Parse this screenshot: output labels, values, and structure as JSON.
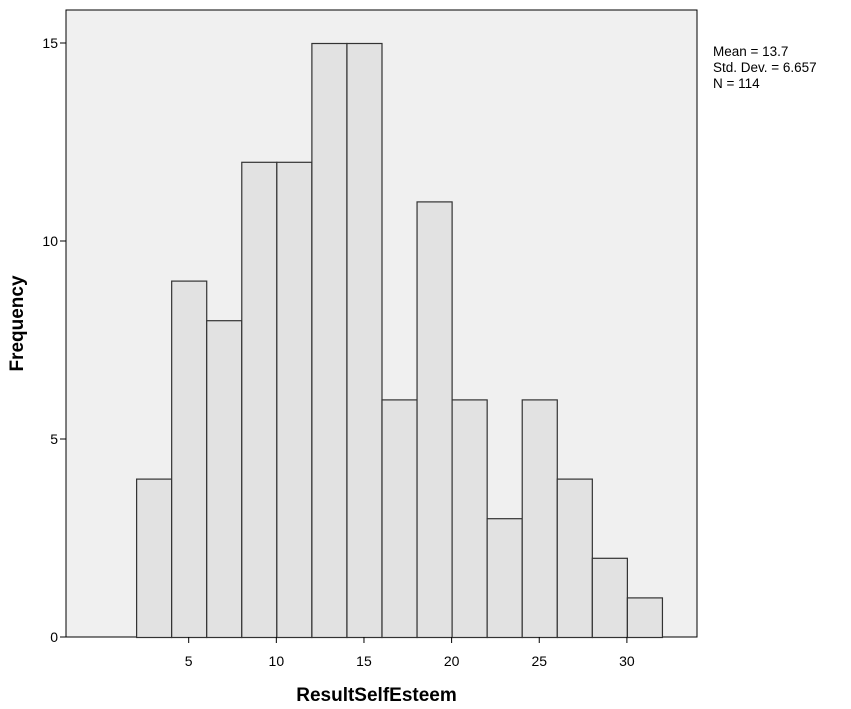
{
  "chart_data": {
    "type": "bar",
    "subtype": "histogram",
    "bins": [
      {
        "x0": 2,
        "x1": 4,
        "count": 4
      },
      {
        "x0": 4,
        "x1": 6,
        "count": 9
      },
      {
        "x0": 6,
        "x1": 8,
        "count": 8
      },
      {
        "x0": 8,
        "x1": 10,
        "count": 12
      },
      {
        "x0": 10,
        "x1": 12,
        "count": 12
      },
      {
        "x0": 12,
        "x1": 14,
        "count": 15
      },
      {
        "x0": 14,
        "x1": 16,
        "count": 15
      },
      {
        "x0": 16,
        "x1": 18,
        "count": 6
      },
      {
        "x0": 18,
        "x1": 20,
        "count": 11
      },
      {
        "x0": 20,
        "x1": 22,
        "count": 6
      },
      {
        "x0": 22,
        "x1": 24,
        "count": 3
      },
      {
        "x0": 24,
        "x1": 26,
        "count": 6
      },
      {
        "x0": 26,
        "x1": 28,
        "count": 4
      },
      {
        "x0": 28,
        "x1": 30,
        "count": 2
      },
      {
        "x0": 30,
        "x1": 32,
        "count": 1
      }
    ],
    "xlabel": "ResultSelfEsteem",
    "ylabel": "Frequency",
    "xlim": [
      -2,
      34
    ],
    "ylim": [
      0,
      15
    ],
    "xticks": [
      5,
      10,
      15,
      20,
      25,
      30
    ],
    "yticks": [
      0,
      5,
      10,
      15
    ],
    "grid": false,
    "bar_fill": "#e2e2e2",
    "bar_stroke": "#333333",
    "plot_background": "#f0f0f0"
  },
  "stats": {
    "mean": "Mean = 13.7",
    "std_dev": "Std. Dev. = 6.657",
    "n": "N = 114"
  }
}
